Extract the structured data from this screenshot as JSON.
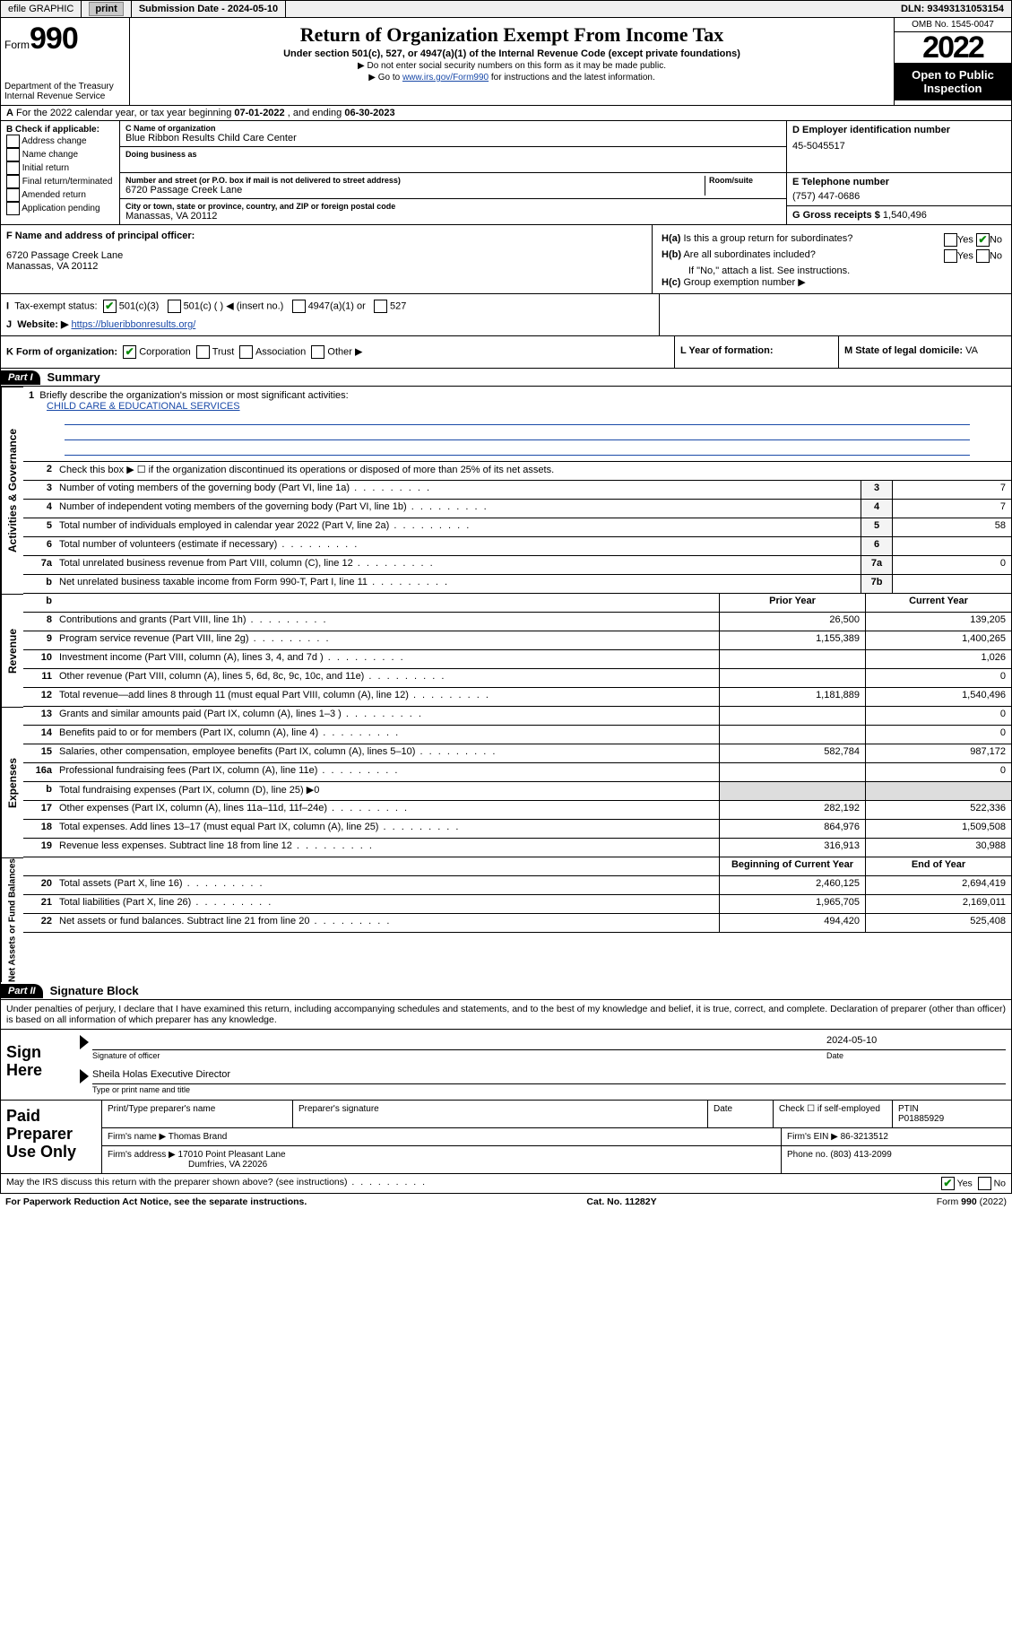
{
  "topbar": {
    "efile_label": "efile GRAPHIC",
    "print_btn": "print",
    "submission_label": "Submission Date - 2024-05-10",
    "dln_label": "DLN: 93493131053154"
  },
  "header": {
    "form_word": "Form",
    "form_num": "990",
    "dept": "Department of the Treasury",
    "irs": "Internal Revenue Service",
    "title": "Return of Organization Exempt From Income Tax",
    "sub": "Under section 501(c), 527, or 4947(a)(1) of the Internal Revenue Code (except private foundations)",
    "note1": "Do not enter social security numbers on this form as it may be made public.",
    "note2_pre": "Go to ",
    "note2_link": "www.irs.gov/Form990",
    "note2_post": " for instructions and the latest information.",
    "omb": "OMB No. 1545-0047",
    "year": "2022",
    "open": "Open to Public Inspection"
  },
  "row_a": {
    "text_pre": "For the 2022 calendar year, or tax year beginning ",
    "begin": "07-01-2022",
    "mid": " , and ending ",
    "end": "06-30-2023"
  },
  "section_b": {
    "label": "B Check if applicable:",
    "opts": [
      "Address change",
      "Name change",
      "Initial return",
      "Final return/terminated",
      "Amended return",
      "Application pending"
    ]
  },
  "section_c": {
    "name_label": "C Name of organization",
    "org_name": "Blue Ribbon Results Child Care Center",
    "dba_label": "Doing business as",
    "addr_label": "Number and street (or P.O. box if mail is not delivered to street address)",
    "room_label": "Room/suite",
    "addr": "6720 Passage Creek Lane",
    "city_label": "City or town, state or province, country, and ZIP or foreign postal code",
    "city": "Manassas, VA  20112"
  },
  "section_d": {
    "label": "D Employer identification number",
    "ein": "45-5045517"
  },
  "section_e": {
    "label": "E Telephone number",
    "phone": "(757) 447-0686"
  },
  "section_g": {
    "label": "G Gross receipts $",
    "val": "1,540,496"
  },
  "section_f": {
    "label": "F Name and address of principal officer:",
    "line1": "6720 Passage Creek Lane",
    "line2": "Manassas, VA  20112"
  },
  "section_h": {
    "ha": "Is this a group return for subordinates?",
    "hb": "Are all subordinates included?",
    "hb_note": "If \"No,\" attach a list. See instructions.",
    "hc": "Group exemption number ▶",
    "yes": "Yes",
    "no": "No"
  },
  "row_i": {
    "label": "Tax-exempt status:",
    "opts": [
      "501(c)(3)",
      "501(c) (  ) ◀ (insert no.)",
      "4947(a)(1) or",
      "527"
    ]
  },
  "row_j": {
    "label": "Website: ▶",
    "url": "https://blueribbonresults.org/"
  },
  "row_k": {
    "label": "K Form of organization:",
    "opts": [
      "Corporation",
      "Trust",
      "Association",
      "Other ▶"
    ],
    "l_label": "L Year of formation:",
    "m_label": "M State of legal domicile: ",
    "m_val": "VA"
  },
  "part1": {
    "hdr": "Part I",
    "title": "Summary",
    "side_gov": "Activities & Governance",
    "side_rev": "Revenue",
    "side_exp": "Expenses",
    "side_net": "Net Assets or Fund Balances",
    "q1": "Briefly describe the organization's mission or most significant activities:",
    "q1_ans": "CHILD CARE & EDUCATIONAL SERVICES",
    "q2": "Check this box ▶ ☐  if the organization discontinued its operations or disposed of more than 25% of its net assets.",
    "rows_gov": [
      {
        "n": "3",
        "d": "Number of voting members of the governing body (Part VI, line 1a)",
        "box": "3",
        "v": "7"
      },
      {
        "n": "4",
        "d": "Number of independent voting members of the governing body (Part VI, line 1b)",
        "box": "4",
        "v": "7"
      },
      {
        "n": "5",
        "d": "Total number of individuals employed in calendar year 2022 (Part V, line 2a)",
        "box": "5",
        "v": "58"
      },
      {
        "n": "6",
        "d": "Total number of volunteers (estimate if necessary)",
        "box": "6",
        "v": ""
      },
      {
        "n": "7a",
        "d": "Total unrelated business revenue from Part VIII, column (C), line 12",
        "box": "7a",
        "v": "0"
      },
      {
        "n": "b",
        "d": "Net unrelated business taxable income from Form 990-T, Part I, line 11",
        "box": "7b",
        "v": ""
      }
    ],
    "col_prior": "Prior Year",
    "col_curr": "Current Year",
    "rows_rev": [
      {
        "n": "8",
        "d": "Contributions and grants (Part VIII, line 1h)",
        "p": "26,500",
        "c": "139,205"
      },
      {
        "n": "9",
        "d": "Program service revenue (Part VIII, line 2g)",
        "p": "1,155,389",
        "c": "1,400,265"
      },
      {
        "n": "10",
        "d": "Investment income (Part VIII, column (A), lines 3, 4, and 7d )",
        "p": "",
        "c": "1,026"
      },
      {
        "n": "11",
        "d": "Other revenue (Part VIII, column (A), lines 5, 6d, 8c, 9c, 10c, and 11e)",
        "p": "",
        "c": "0"
      },
      {
        "n": "12",
        "d": "Total revenue—add lines 8 through 11 (must equal Part VIII, column (A), line 12)",
        "p": "1,181,889",
        "c": "1,540,496"
      }
    ],
    "rows_exp": [
      {
        "n": "13",
        "d": "Grants and similar amounts paid (Part IX, column (A), lines 1–3 )",
        "p": "",
        "c": "0"
      },
      {
        "n": "14",
        "d": "Benefits paid to or for members (Part IX, column (A), line 4)",
        "p": "",
        "c": "0"
      },
      {
        "n": "15",
        "d": "Salaries, other compensation, employee benefits (Part IX, column (A), lines 5–10)",
        "p": "582,784",
        "c": "987,172"
      },
      {
        "n": "16a",
        "d": "Professional fundraising fees (Part IX, column (A), line 11e)",
        "p": "",
        "c": "0"
      },
      {
        "n": "b",
        "d": "Total fundraising expenses (Part IX, column (D), line 25) ▶0",
        "p": null,
        "c": null
      },
      {
        "n": "17",
        "d": "Other expenses (Part IX, column (A), lines 11a–11d, 11f–24e)",
        "p": "282,192",
        "c": "522,336"
      },
      {
        "n": "18",
        "d": "Total expenses. Add lines 13–17 (must equal Part IX, column (A), line 25)",
        "p": "864,976",
        "c": "1,509,508"
      },
      {
        "n": "19",
        "d": "Revenue less expenses. Subtract line 18 from line 12",
        "p": "316,913",
        "c": "30,988"
      }
    ],
    "col_beg": "Beginning of Current Year",
    "col_end": "End of Year",
    "rows_net": [
      {
        "n": "20",
        "d": "Total assets (Part X, line 16)",
        "p": "2,460,125",
        "c": "2,694,419"
      },
      {
        "n": "21",
        "d": "Total liabilities (Part X, line 26)",
        "p": "1,965,705",
        "c": "2,169,011"
      },
      {
        "n": "22",
        "d": "Net assets or fund balances. Subtract line 21 from line 20",
        "p": "494,420",
        "c": "525,408"
      }
    ]
  },
  "part2": {
    "hdr": "Part II",
    "title": "Signature Block",
    "decl": "Under penalties of perjury, I declare that I have examined this return, including accompanying schedules and statements, and to the best of my knowledge and belief, it is true, correct, and complete. Declaration of preparer (other than officer) is based on all information of which preparer has any knowledge.",
    "sign_here": "Sign Here",
    "sig_officer": "Signature of officer",
    "sig_date_label": "Date",
    "sig_date": "2024-05-10",
    "officer_name": "Sheila Holas  Executive Director",
    "officer_sub": "Type or print name and title",
    "paid": "Paid Preparer Use Only",
    "pt_name_lbl": "Print/Type preparer's name",
    "pt_sig_lbl": "Preparer's signature",
    "pt_date_lbl": "Date",
    "pt_check": "Check ☐ if self-employed",
    "ptin_lbl": "PTIN",
    "ptin": "P01885929",
    "firm_name_lbl": "Firm's name    ▶",
    "firm_name": "Thomas Brand",
    "firm_ein_lbl": "Firm's EIN ▶",
    "firm_ein": "86-3213512",
    "firm_addr_lbl": "Firm's address ▶",
    "firm_addr": "17010 Point Pleasant Lane",
    "firm_city": "Dumfries, VA  22026",
    "firm_phone_lbl": "Phone no.",
    "firm_phone": "(803) 413-2099",
    "discuss": "May the IRS discuss this return with the preparer shown above? (see instructions)",
    "paperwork": "For Paperwork Reduction Act Notice, see the separate instructions.",
    "catno": "Cat. No. 11282Y",
    "formfoot": "Form 990 (2022)"
  }
}
